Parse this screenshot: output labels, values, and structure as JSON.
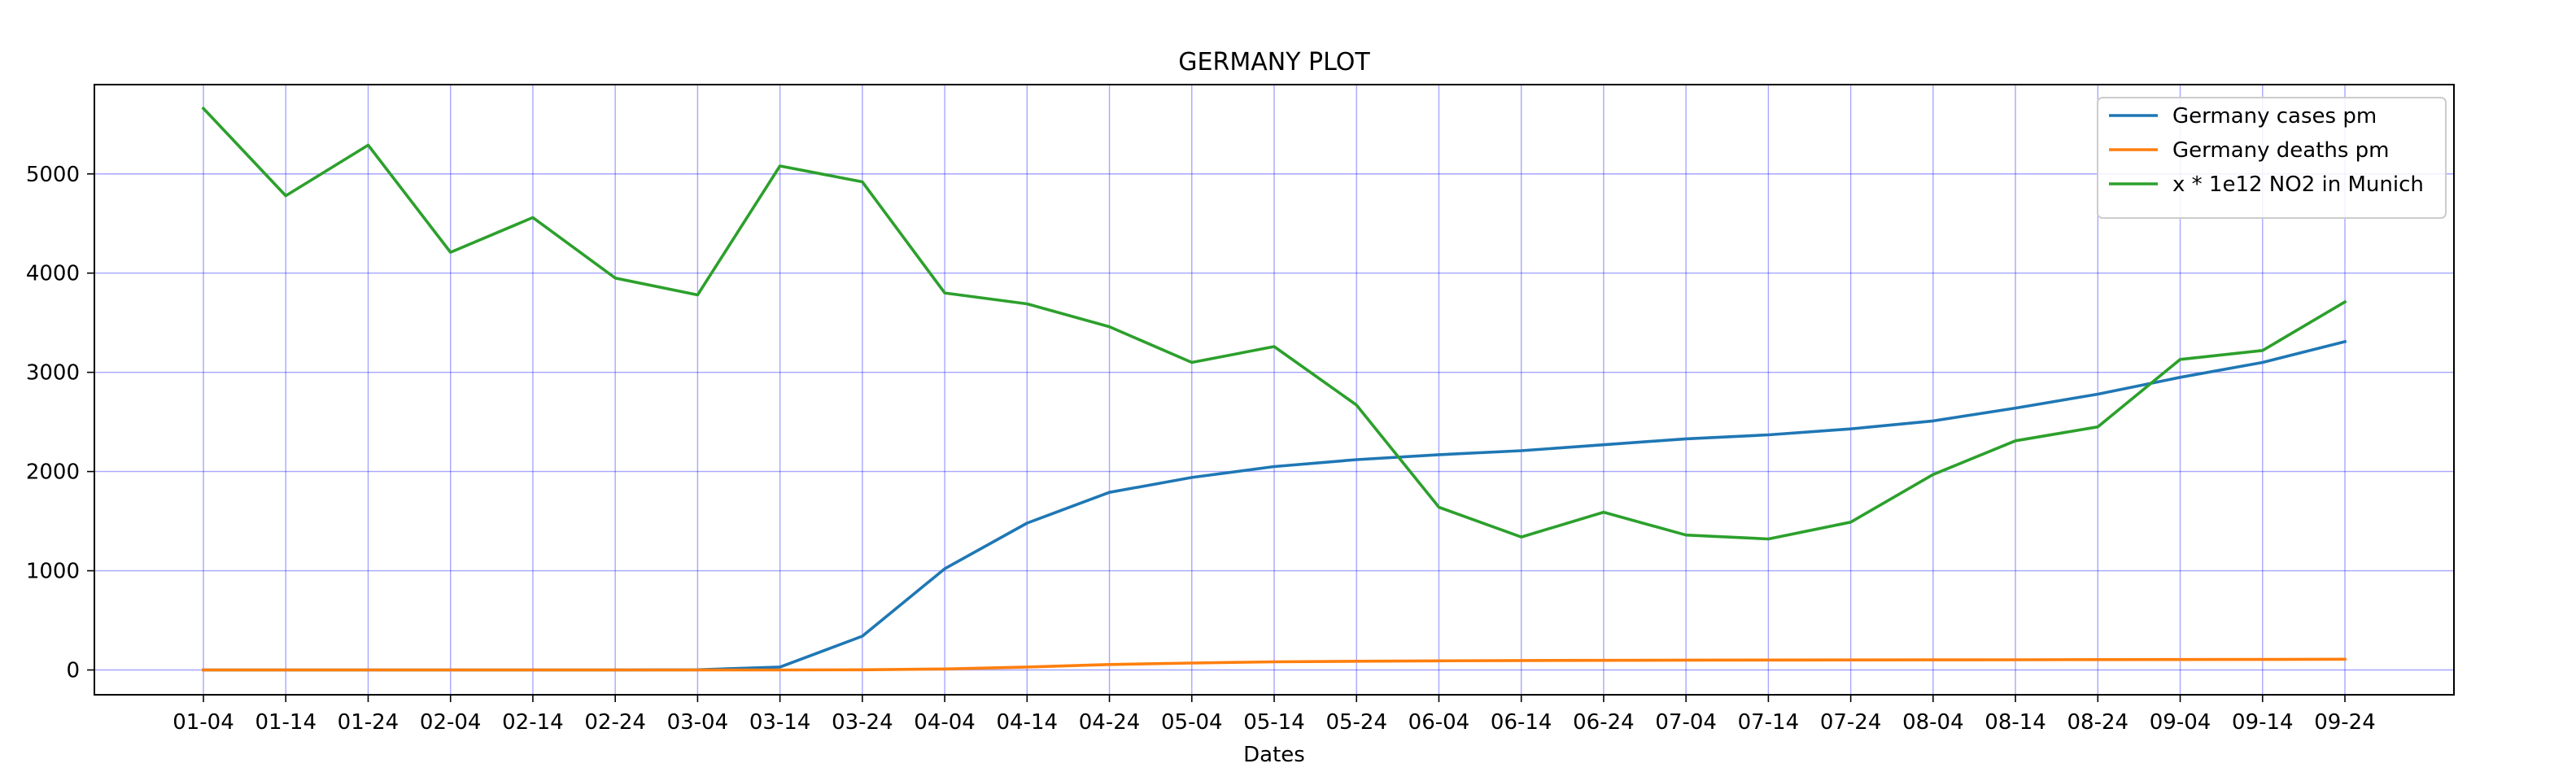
{
  "chart_data": {
    "type": "line",
    "title": "GERMANY PLOT",
    "xlabel": "Dates",
    "ylabel": "",
    "categories": [
      "01-04",
      "01-14",
      "01-24",
      "02-04",
      "02-14",
      "02-24",
      "03-04",
      "03-14",
      "03-24",
      "04-04",
      "04-14",
      "04-24",
      "05-04",
      "05-14",
      "05-24",
      "06-04",
      "06-14",
      "06-24",
      "07-04",
      "07-14",
      "07-24",
      "08-04",
      "08-14",
      "08-24",
      "09-04",
      "09-14",
      "09-24"
    ],
    "ylim": [
      -250,
      5900
    ],
    "yticks": [
      0,
      1000,
      2000,
      3000,
      4000,
      5000
    ],
    "grid": true,
    "legend_position": "top-right",
    "series": [
      {
        "name": "Germany cases pm",
        "color": "#1f77b4",
        "values": [
          0,
          0,
          0,
          0,
          0,
          0,
          2,
          30,
          340,
          1020,
          1480,
          1790,
          1940,
          2050,
          2120,
          2170,
          2210,
          2270,
          2330,
          2370,
          2430,
          2510,
          2640,
          2780,
          2950,
          3100,
          3310
        ]
      },
      {
        "name": "Germany deaths pm",
        "color": "#ff7f0e",
        "values": [
          0,
          0,
          0,
          0,
          0,
          0,
          0,
          0,
          2,
          10,
          30,
          55,
          70,
          82,
          88,
          92,
          95,
          97,
          99,
          100,
          101,
          102,
          103,
          104,
          105,
          106,
          108
        ]
      },
      {
        "name": "x * 1e12 NO2 in Munich",
        "color": "#2ca02c",
        "values": [
          5660,
          4780,
          5290,
          4210,
          4560,
          3950,
          3780,
          5080,
          4920,
          3800,
          3690,
          3460,
          3100,
          3260,
          2670,
          1640,
          1340,
          1590,
          1360,
          1320,
          1490,
          1970,
          2310,
          2450,
          3130,
          3220,
          3710
        ]
      }
    ]
  }
}
